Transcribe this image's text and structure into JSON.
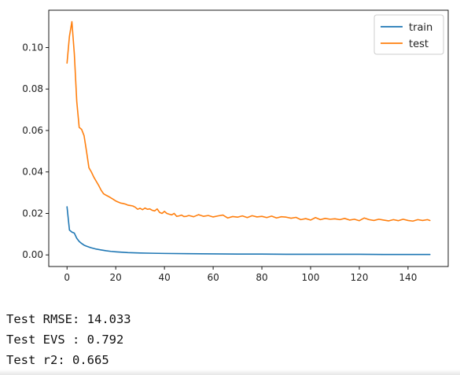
{
  "chart_data": {
    "type": "line",
    "title": "",
    "xlabel": "",
    "ylabel": "",
    "xlim": [
      -7.5,
      156.5
    ],
    "ylim": [
      -0.0056,
      0.118
    ],
    "xticks": [
      0,
      20,
      40,
      60,
      80,
      100,
      120,
      140
    ],
    "xtick_labels": [
      "0",
      "20",
      "40",
      "60",
      "80",
      "100",
      "120",
      "140"
    ],
    "yticks": [
      0.0,
      0.02,
      0.04,
      0.06,
      0.08,
      0.1
    ],
    "ytick_labels": [
      "0.00",
      "0.02",
      "0.04",
      "0.06",
      "0.08",
      "0.10"
    ],
    "grid": false,
    "legend_position": "top-right",
    "series": [
      {
        "name": "train",
        "color": "#1f77b4",
        "x": [
          0,
          1,
          2,
          3,
          4,
          5,
          6,
          7,
          8,
          9,
          10,
          12,
          14,
          16,
          18,
          20,
          25,
          30,
          35,
          40,
          50,
          60,
          70,
          80,
          90,
          100,
          110,
          120,
          130,
          140,
          149
        ],
        "y": [
          0.0232,
          0.012,
          0.011,
          0.0105,
          0.008,
          0.0065,
          0.0055,
          0.0047,
          0.0042,
          0.0038,
          0.0034,
          0.0028,
          0.0024,
          0.002,
          0.0017,
          0.0015,
          0.0011,
          0.0009,
          0.0008,
          0.0007,
          0.0006,
          0.0005,
          0.0004,
          0.0004,
          0.0003,
          0.0003,
          0.0003,
          0.0003,
          0.0002,
          0.0002,
          0.0002
        ]
      },
      {
        "name": "test",
        "color": "#ff7f0e",
        "x": [
          0,
          1,
          2,
          3,
          4,
          5,
          6,
          7,
          8,
          9,
          10,
          11,
          12,
          13,
          14,
          15,
          16,
          17,
          18,
          19,
          20,
          21,
          22,
          23,
          24,
          25,
          26,
          27,
          28,
          29,
          30,
          31,
          32,
          33,
          34,
          35,
          36,
          37,
          38,
          39,
          40,
          41,
          42,
          43,
          44,
          45,
          46,
          47,
          48,
          49,
          50,
          52,
          54,
          56,
          58,
          60,
          62,
          64,
          66,
          68,
          70,
          72,
          74,
          76,
          78,
          80,
          82,
          84,
          86,
          88,
          90,
          92,
          94,
          96,
          98,
          100,
          102,
          104,
          106,
          108,
          110,
          112,
          114,
          116,
          118,
          120,
          122,
          124,
          126,
          128,
          130,
          132,
          134,
          136,
          138,
          140,
          142,
          144,
          146,
          148,
          149
        ],
        "y": [
          0.0925,
          0.1055,
          0.1125,
          0.097,
          0.074,
          0.0615,
          0.0605,
          0.0575,
          0.05,
          0.042,
          0.04,
          0.0375,
          0.0355,
          0.0335,
          0.0312,
          0.0295,
          0.0288,
          0.0282,
          0.0275,
          0.0268,
          0.026,
          0.0255,
          0.025,
          0.0248,
          0.0245,
          0.024,
          0.0238,
          0.0236,
          0.023,
          0.022,
          0.0225,
          0.0218,
          0.0226,
          0.022,
          0.0222,
          0.0215,
          0.0212,
          0.0222,
          0.0205,
          0.02,
          0.021,
          0.02,
          0.0196,
          0.0193,
          0.02,
          0.0186,
          0.0188,
          0.0192,
          0.0185,
          0.0186,
          0.019,
          0.0184,
          0.0194,
          0.0186,
          0.019,
          0.0183,
          0.0188,
          0.0192,
          0.0178,
          0.0185,
          0.0182,
          0.0188,
          0.018,
          0.0189,
          0.0183,
          0.0186,
          0.018,
          0.0187,
          0.0178,
          0.0184,
          0.0182,
          0.0177,
          0.0181,
          0.017,
          0.0175,
          0.0168,
          0.018,
          0.017,
          0.0176,
          0.0172,
          0.0174,
          0.017,
          0.0176,
          0.0168,
          0.0172,
          0.0165,
          0.0178,
          0.017,
          0.0166,
          0.0172,
          0.0168,
          0.0164,
          0.017,
          0.0165,
          0.0172,
          0.0166,
          0.0163,
          0.017,
          0.0166,
          0.017,
          0.0166
        ]
      }
    ]
  },
  "output_lines": [
    "Test RMSE: 14.033",
    "Test EVS : 0.792",
    "Test r2: 0.665"
  ]
}
